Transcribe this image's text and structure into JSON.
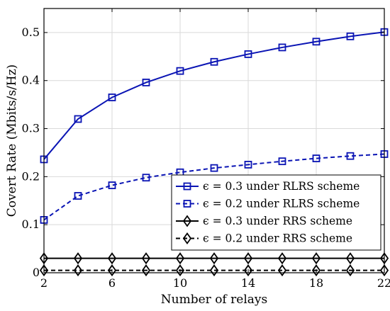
{
  "chart_data": {
    "type": "line",
    "xlabel": "Number of relays",
    "ylabel": "Covert Rate (Mbits/s/Hz)",
    "xlim": [
      2,
      22
    ],
    "ylim": [
      0,
      0.55
    ],
    "xticks": [
      2,
      6,
      10,
      14,
      18,
      22
    ],
    "yticks": [
      0,
      0.1,
      0.2,
      0.3,
      0.4,
      0.5
    ],
    "x": [
      2,
      4,
      6,
      8,
      10,
      12,
      14,
      16,
      18,
      20,
      22
    ],
    "grid": true,
    "legend_position": "center-right",
    "series": [
      {
        "name": "ϵ = 0.3 under RLRS scheme",
        "values": [
          0.236,
          0.32,
          0.365,
          0.396,
          0.42,
          0.439,
          0.455,
          0.469,
          0.481,
          0.492,
          0.501
        ],
        "color": "#0a14b4",
        "line": "solid",
        "marker": "square"
      },
      {
        "name": "ϵ = 0.2 under RLRS scheme",
        "values": [
          0.11,
          0.16,
          0.182,
          0.198,
          0.209,
          0.218,
          0.225,
          0.232,
          0.238,
          0.243,
          0.247
        ],
        "color": "#0a14b4",
        "line": "dashed",
        "marker": "square"
      },
      {
        "name": "ϵ = 0.3 under RRS scheme",
        "values": [
          0.03,
          0.03,
          0.03,
          0.03,
          0.03,
          0.03,
          0.03,
          0.03,
          0.03,
          0.03,
          0.03
        ],
        "color": "#000000",
        "line": "solid",
        "marker": "diamond"
      },
      {
        "name": "ϵ = 0.2 under RRS scheme",
        "values": [
          0.005,
          0.005,
          0.005,
          0.005,
          0.005,
          0.005,
          0.005,
          0.005,
          0.005,
          0.005,
          0.005
        ],
        "color": "#000000",
        "line": "dashed",
        "marker": "diamond"
      }
    ]
  }
}
